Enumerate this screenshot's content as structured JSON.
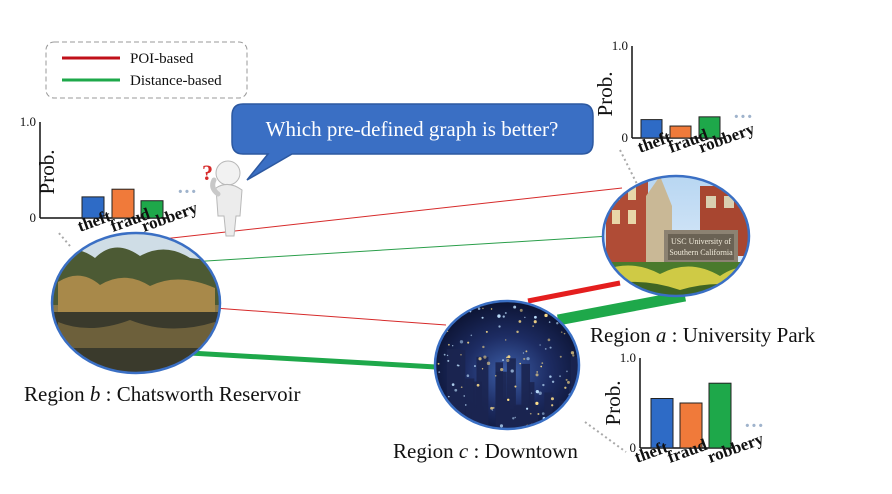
{
  "legend": {
    "items": [
      {
        "label": "POI-based",
        "color": "#c0101a"
      },
      {
        "label": "Distance-based",
        "color": "#1ea84a"
      }
    ]
  },
  "speech_bubble": {
    "text": "Which pre-defined graph is better?",
    "color": "#3a6fc4"
  },
  "question_mark": "?",
  "regions": {
    "a": {
      "prefix": "Region ",
      "var": "a",
      "suffix": " : University Park"
    },
    "b": {
      "prefix": "Region ",
      "var": "b",
      "suffix": " : Chatsworth Reservoir"
    },
    "c": {
      "prefix": "Region ",
      "var": "c",
      "suffix": " : Downtown"
    }
  },
  "sign_text": {
    "line1": "USC University of",
    "line2": "Southern California"
  },
  "chart_data": [
    {
      "type": "bar",
      "region": "b",
      "categories": [
        "theft",
        "fraud",
        "robbery"
      ],
      "values": [
        0.22,
        0.3,
        0.18
      ],
      "ylabel": "Prob.",
      "ylim": [
        0,
        1.0
      ],
      "yticks": [
        "0",
        "1.0"
      ],
      "colors": [
        "#2e6bc6",
        "#f07a3a",
        "#1ea84a"
      ],
      "ellipsis": "···"
    },
    {
      "type": "bar",
      "region": "a",
      "categories": [
        "theft",
        "fraud",
        "robbery"
      ],
      "values": [
        0.2,
        0.13,
        0.23
      ],
      "ylabel": "Prob.",
      "ylim": [
        0,
        1.0
      ],
      "yticks": [
        "0",
        "1.0"
      ],
      "colors": [
        "#2e6bc6",
        "#f07a3a",
        "#1ea84a"
      ],
      "ellipsis": "···"
    },
    {
      "type": "bar",
      "region": "c",
      "categories": [
        "theft",
        "fraud",
        "robbery"
      ],
      "values": [
        0.55,
        0.5,
        0.72
      ],
      "ylabel": "Prob.",
      "ylim": [
        0,
        1.0
      ],
      "yticks": [
        "0",
        "1.0"
      ],
      "colors": [
        "#2e6bc6",
        "#f07a3a",
        "#1ea84a"
      ],
      "ellipsis": "···"
    }
  ]
}
